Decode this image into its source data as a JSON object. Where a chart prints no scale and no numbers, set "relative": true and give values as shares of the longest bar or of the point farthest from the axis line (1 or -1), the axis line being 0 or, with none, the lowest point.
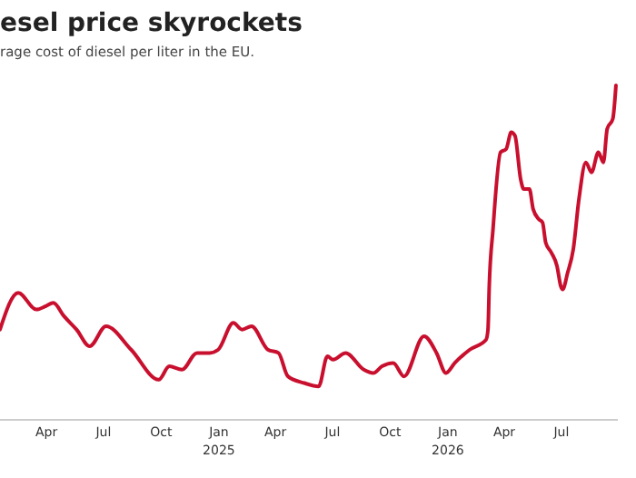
{
  "chart_data": {
    "type": "line",
    "title": "esel price skyrockets",
    "subtitle": "rage cost of diesel per liter in the EU.",
    "relative": true,
    "xlim": [
      "2024-01-18",
      "2026-09-29"
    ],
    "xticks": [
      {
        "value": "2024-04-01",
        "label": "Apr"
      },
      {
        "value": "2024-07-01",
        "label": "Jul"
      },
      {
        "value": "2024-10-01",
        "label": "Oct"
      },
      {
        "value": "2025-01-01",
        "label": "Jan\n2025"
      },
      {
        "value": "2025-04-01",
        "label": "Apr"
      },
      {
        "value": "2025-07-01",
        "label": "Jul"
      },
      {
        "value": "2025-10-01",
        "label": "Oct"
      },
      {
        "value": "2026-01-01",
        "label": "Jan\n2026"
      },
      {
        "value": "2026-04-01",
        "label": "Apr"
      },
      {
        "value": "2026-07-01",
        "label": "Jul"
      }
    ],
    "x": [
      "2024-01-18",
      "2024-02-16",
      "2024-03-16",
      "2024-03-31",
      "2024-04-12",
      "2024-04-29",
      "2024-05-19",
      "2024-06-09",
      "2024-07-05",
      "2024-08-14",
      "2024-09-27",
      "2024-10-14",
      "2024-11-03",
      "2024-11-27",
      "2024-12-17",
      "2024-12-31",
      "2025-01-24",
      "2025-02-07",
      "2025-02-22",
      "2025-03-20",
      "2025-04-06",
      "2025-04-21",
      "2025-05-17",
      "2025-06-09",
      "2025-06-23",
      "2025-07-02",
      "2025-07-22",
      "2025-08-20",
      "2025-09-04",
      "2025-09-18",
      "2025-10-06",
      "2025-10-23",
      "2025-11-24",
      "2025-12-14",
      "2025-12-29",
      "2026-01-12",
      "2026-02-05",
      "2026-03-03",
      "2026-03-06",
      "2026-03-08",
      "2026-03-14",
      "2026-03-26",
      "2026-04-04",
      "2026-04-12",
      "2026-04-18",
      "2026-04-27",
      "2026-05-02",
      "2026-05-11",
      "2026-05-17",
      "2026-05-26",
      "2026-06-01",
      "2026-06-06",
      "2026-06-15",
      "2026-06-24",
      "2026-06-30",
      "2026-07-03",
      "2026-07-11",
      "2026-07-20",
      "2026-07-29",
      "2026-08-09",
      "2026-08-18",
      "2026-08-29",
      "2026-09-06",
      "2026-09-12",
      "2026-09-21",
      "2026-09-26"
    ],
    "series": [
      {
        "color": "#c8102e",
        "values": [
          0.27,
          0.38,
          0.33,
          0.34,
          0.35,
          0.31,
          0.27,
          0.22,
          0.28,
          0.21,
          0.12,
          0.16,
          0.15,
          0.2,
          0.2,
          0.21,
          0.29,
          0.27,
          0.28,
          0.21,
          0.2,
          0.13,
          0.11,
          0.1,
          0.19,
          0.18,
          0.2,
          0.15,
          0.14,
          0.16,
          0.17,
          0.13,
          0.25,
          0.2,
          0.14,
          0.17,
          0.21,
          0.24,
          0.27,
          0.4,
          0.57,
          0.8,
          0.81,
          0.86,
          0.85,
          0.72,
          0.69,
          0.69,
          0.63,
          0.6,
          0.59,
          0.53,
          0.5,
          0.46,
          0.4,
          0.39,
          0.44,
          0.51,
          0.66,
          0.77,
          0.74,
          0.8,
          0.77,
          0.87,
          0.9,
          1
        ]
      }
    ]
  }
}
